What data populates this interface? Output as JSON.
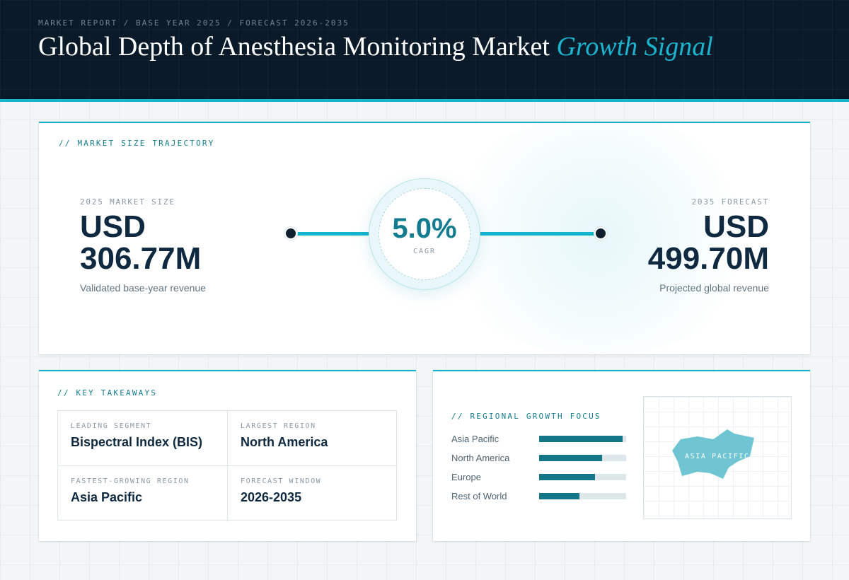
{
  "header": {
    "eyebrow": "MARKET REPORT / BASE YEAR 2025 / FORECAST 2026-2035",
    "title_main": "Global Depth of Anesthesia Monitoring Market",
    "title_accent": "Growth Signal"
  },
  "trajectory": {
    "section_label": "// MARKET SIZE TRAJECTORY",
    "start": {
      "label": "2025 MARKET SIZE",
      "currency": "USD",
      "amount": "306.77M",
      "caption": "Validated base-year revenue"
    },
    "end": {
      "label": "2035 FORECAST",
      "currency": "USD",
      "amount": "499.70M",
      "caption": "Projected global revenue"
    },
    "cagr": {
      "value": "5.0%",
      "label": "CAGR"
    }
  },
  "takeaways": {
    "section_label": "// KEY TAKEAWAYS",
    "items": [
      {
        "label": "LEADING SEGMENT",
        "value": "Bispectral Index (BIS)"
      },
      {
        "label": "LARGEST REGION",
        "value": "North America"
      },
      {
        "label": "FASTEST-GROWING REGION",
        "value": "Asia Pacific"
      },
      {
        "label": "FORECAST WINDOW",
        "value": "2026-2035"
      }
    ]
  },
  "regional": {
    "section_label": "// REGIONAL GROWTH FOCUS",
    "regions": [
      {
        "name": "Asia Pacific",
        "level": 0.96
      },
      {
        "name": "North America",
        "level": 0.72
      },
      {
        "name": "Europe",
        "level": 0.64
      },
      {
        "name": "Rest of World",
        "level": 0.46
      }
    ],
    "map_label": "ASIA PACIFIC"
  },
  "colors": {
    "accent": "#14b5cc",
    "accent_dark": "#137d8f",
    "navy": "#0a1a28",
    "bar_fill": "#137788",
    "map_shape": "#6fc6d2"
  }
}
